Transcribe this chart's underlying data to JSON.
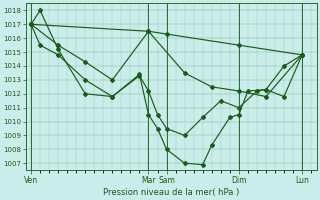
{
  "bg_color": "#caecea",
  "grid_color": "#88bba0",
  "line_color": "#1a5c1a",
  "spine_color": "#2a6e2a",
  "title": "Pression niveau de la mer( hPa )",
  "ylim_low": 1006.5,
  "ylim_high": 1018.5,
  "yticks": [
    1007,
    1008,
    1009,
    1010,
    1011,
    1012,
    1013,
    1014,
    1015,
    1016,
    1017,
    1018
  ],
  "xtick_labels": [
    "Ven",
    "Mar",
    "Sam",
    "Dim",
    "Lun"
  ],
  "xtick_pos": [
    0,
    6.5,
    7.5,
    11.5,
    15
  ],
  "xlim_low": -0.3,
  "xlim_high": 15.8,
  "vlines": [
    0,
    6.5,
    7.5,
    11.5,
    15
  ],
  "lineA_x": [
    0,
    6.5,
    7.5,
    11.5,
    15
  ],
  "lineA_y": [
    1017.0,
    1016.5,
    1016.3,
    1015.5,
    1014.8
  ],
  "lineB_x": [
    0,
    1.5,
    3,
    4.5,
    6.5,
    8.5,
    10,
    11.5,
    13,
    15
  ],
  "lineB_y": [
    1017.0,
    1015.5,
    1014.3,
    1013.0,
    1016.5,
    1013.5,
    1012.5,
    1012.2,
    1011.8,
    1014.8
  ],
  "lineC_x": [
    0,
    0.5,
    1.5,
    3,
    4.5,
    6,
    6.5,
    7,
    7.5,
    8.5,
    9.5,
    10.5,
    11.5,
    12.5,
    13,
    14,
    15
  ],
  "lineC_y": [
    1017.0,
    1015.5,
    1014.8,
    1013.0,
    1011.8,
    1013.3,
    1012.2,
    1010.5,
    1009.5,
    1009.0,
    1010.3,
    1011.5,
    1011.0,
    1012.2,
    1012.3,
    1011.8,
    1014.8
  ],
  "lineD_x": [
    0,
    0.5,
    1.5,
    3,
    4.5,
    6,
    6.5,
    7,
    7.5,
    8.5,
    9.5,
    10,
    11,
    11.5,
    12,
    13,
    14,
    15
  ],
  "lineD_y": [
    1017.0,
    1018.0,
    1015.2,
    1012.0,
    1011.8,
    1013.4,
    1010.5,
    1009.5,
    1008.0,
    1007.0,
    1006.9,
    1008.3,
    1010.3,
    1010.5,
    1012.2,
    1012.3,
    1014.0,
    1014.8
  ]
}
